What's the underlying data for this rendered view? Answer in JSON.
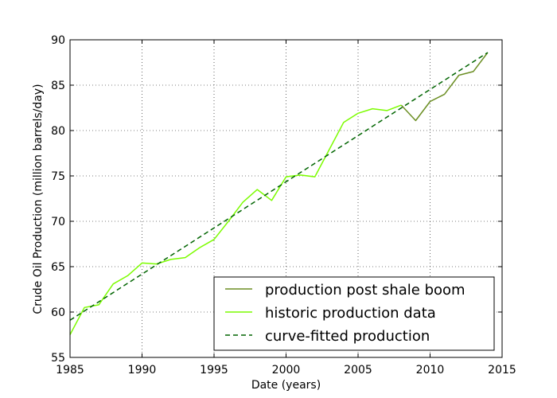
{
  "chart_data": {
    "type": "line",
    "title": "",
    "xlabel": "Date (years)",
    "ylabel": "Crude Oil Production (million barrels/day)",
    "xlim": [
      1985,
      2015
    ],
    "ylim": [
      55,
      90
    ],
    "xticks": [
      1985,
      1990,
      1995,
      2000,
      2005,
      2010,
      2015
    ],
    "yticks": [
      55,
      60,
      65,
      70,
      75,
      80,
      85,
      90
    ],
    "grid": true,
    "legend_position": "lower-right",
    "series": [
      {
        "name": "production post shale boom",
        "color": "#6b8e23",
        "style": "solid",
        "x": [
          2008,
          2009,
          2010,
          2011,
          2012,
          2013,
          2014
        ],
        "y": [
          82.8,
          81.1,
          83.2,
          84.0,
          86.1,
          86.5,
          88.6
        ]
      },
      {
        "name": "historic production data",
        "color": "#7cfc00",
        "style": "solid",
        "x": [
          1985,
          1986,
          1987,
          1988,
          1989,
          1990,
          1991,
          1992,
          1993,
          1994,
          1995,
          1996,
          1997,
          1998,
          1999,
          2000,
          2001,
          2002,
          2003,
          2004,
          2005,
          2006,
          2007,
          2008
        ],
        "y": [
          57.5,
          60.5,
          60.8,
          63.1,
          64.0,
          65.4,
          65.3,
          65.8,
          66.0,
          67.1,
          68.0,
          70.0,
          72.1,
          73.5,
          72.3,
          74.9,
          75.1,
          74.9,
          77.9,
          80.9,
          81.9,
          82.4,
          82.2,
          82.8
        ]
      },
      {
        "name": "curve-fitted production",
        "color": "#006400",
        "style": "dashed",
        "x": [
          1985,
          2014
        ],
        "y": [
          59.1,
          88.6
        ]
      }
    ]
  }
}
